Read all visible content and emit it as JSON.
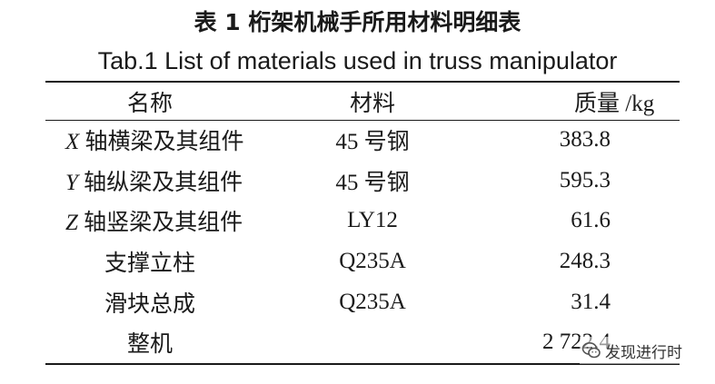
{
  "title_cn": "表 1 桁架机械手所用材料明细表",
  "title_en": "Tab.1 List of materials used in truss manipulator",
  "table": {
    "headers": {
      "name": "名称",
      "material": "材料",
      "mass": "质量 /kg"
    },
    "rows": [
      {
        "axis": "X",
        "name": " 轴横梁及其组件",
        "material": "45 号钢",
        "mass": "383.8"
      },
      {
        "axis": "Y",
        "name": " 轴纵梁及其组件",
        "material": "45 号钢",
        "mass": "595.3"
      },
      {
        "axis": "Z",
        "name": " 轴竖梁及其组件",
        "material": "LY12",
        "mass": "61.6"
      },
      {
        "axis": "",
        "name": "支撑立柱",
        "material": "Q235A",
        "mass": "248.3"
      },
      {
        "axis": "",
        "name": "滑块总成",
        "material": "Q235A",
        "mass": "31.4"
      },
      {
        "axis": "",
        "name": "整机",
        "material": "",
        "mass": "2 722.4"
      }
    ]
  },
  "watermark": {
    "text": "发现进行时",
    "icon": "wechat-logo-icon"
  }
}
